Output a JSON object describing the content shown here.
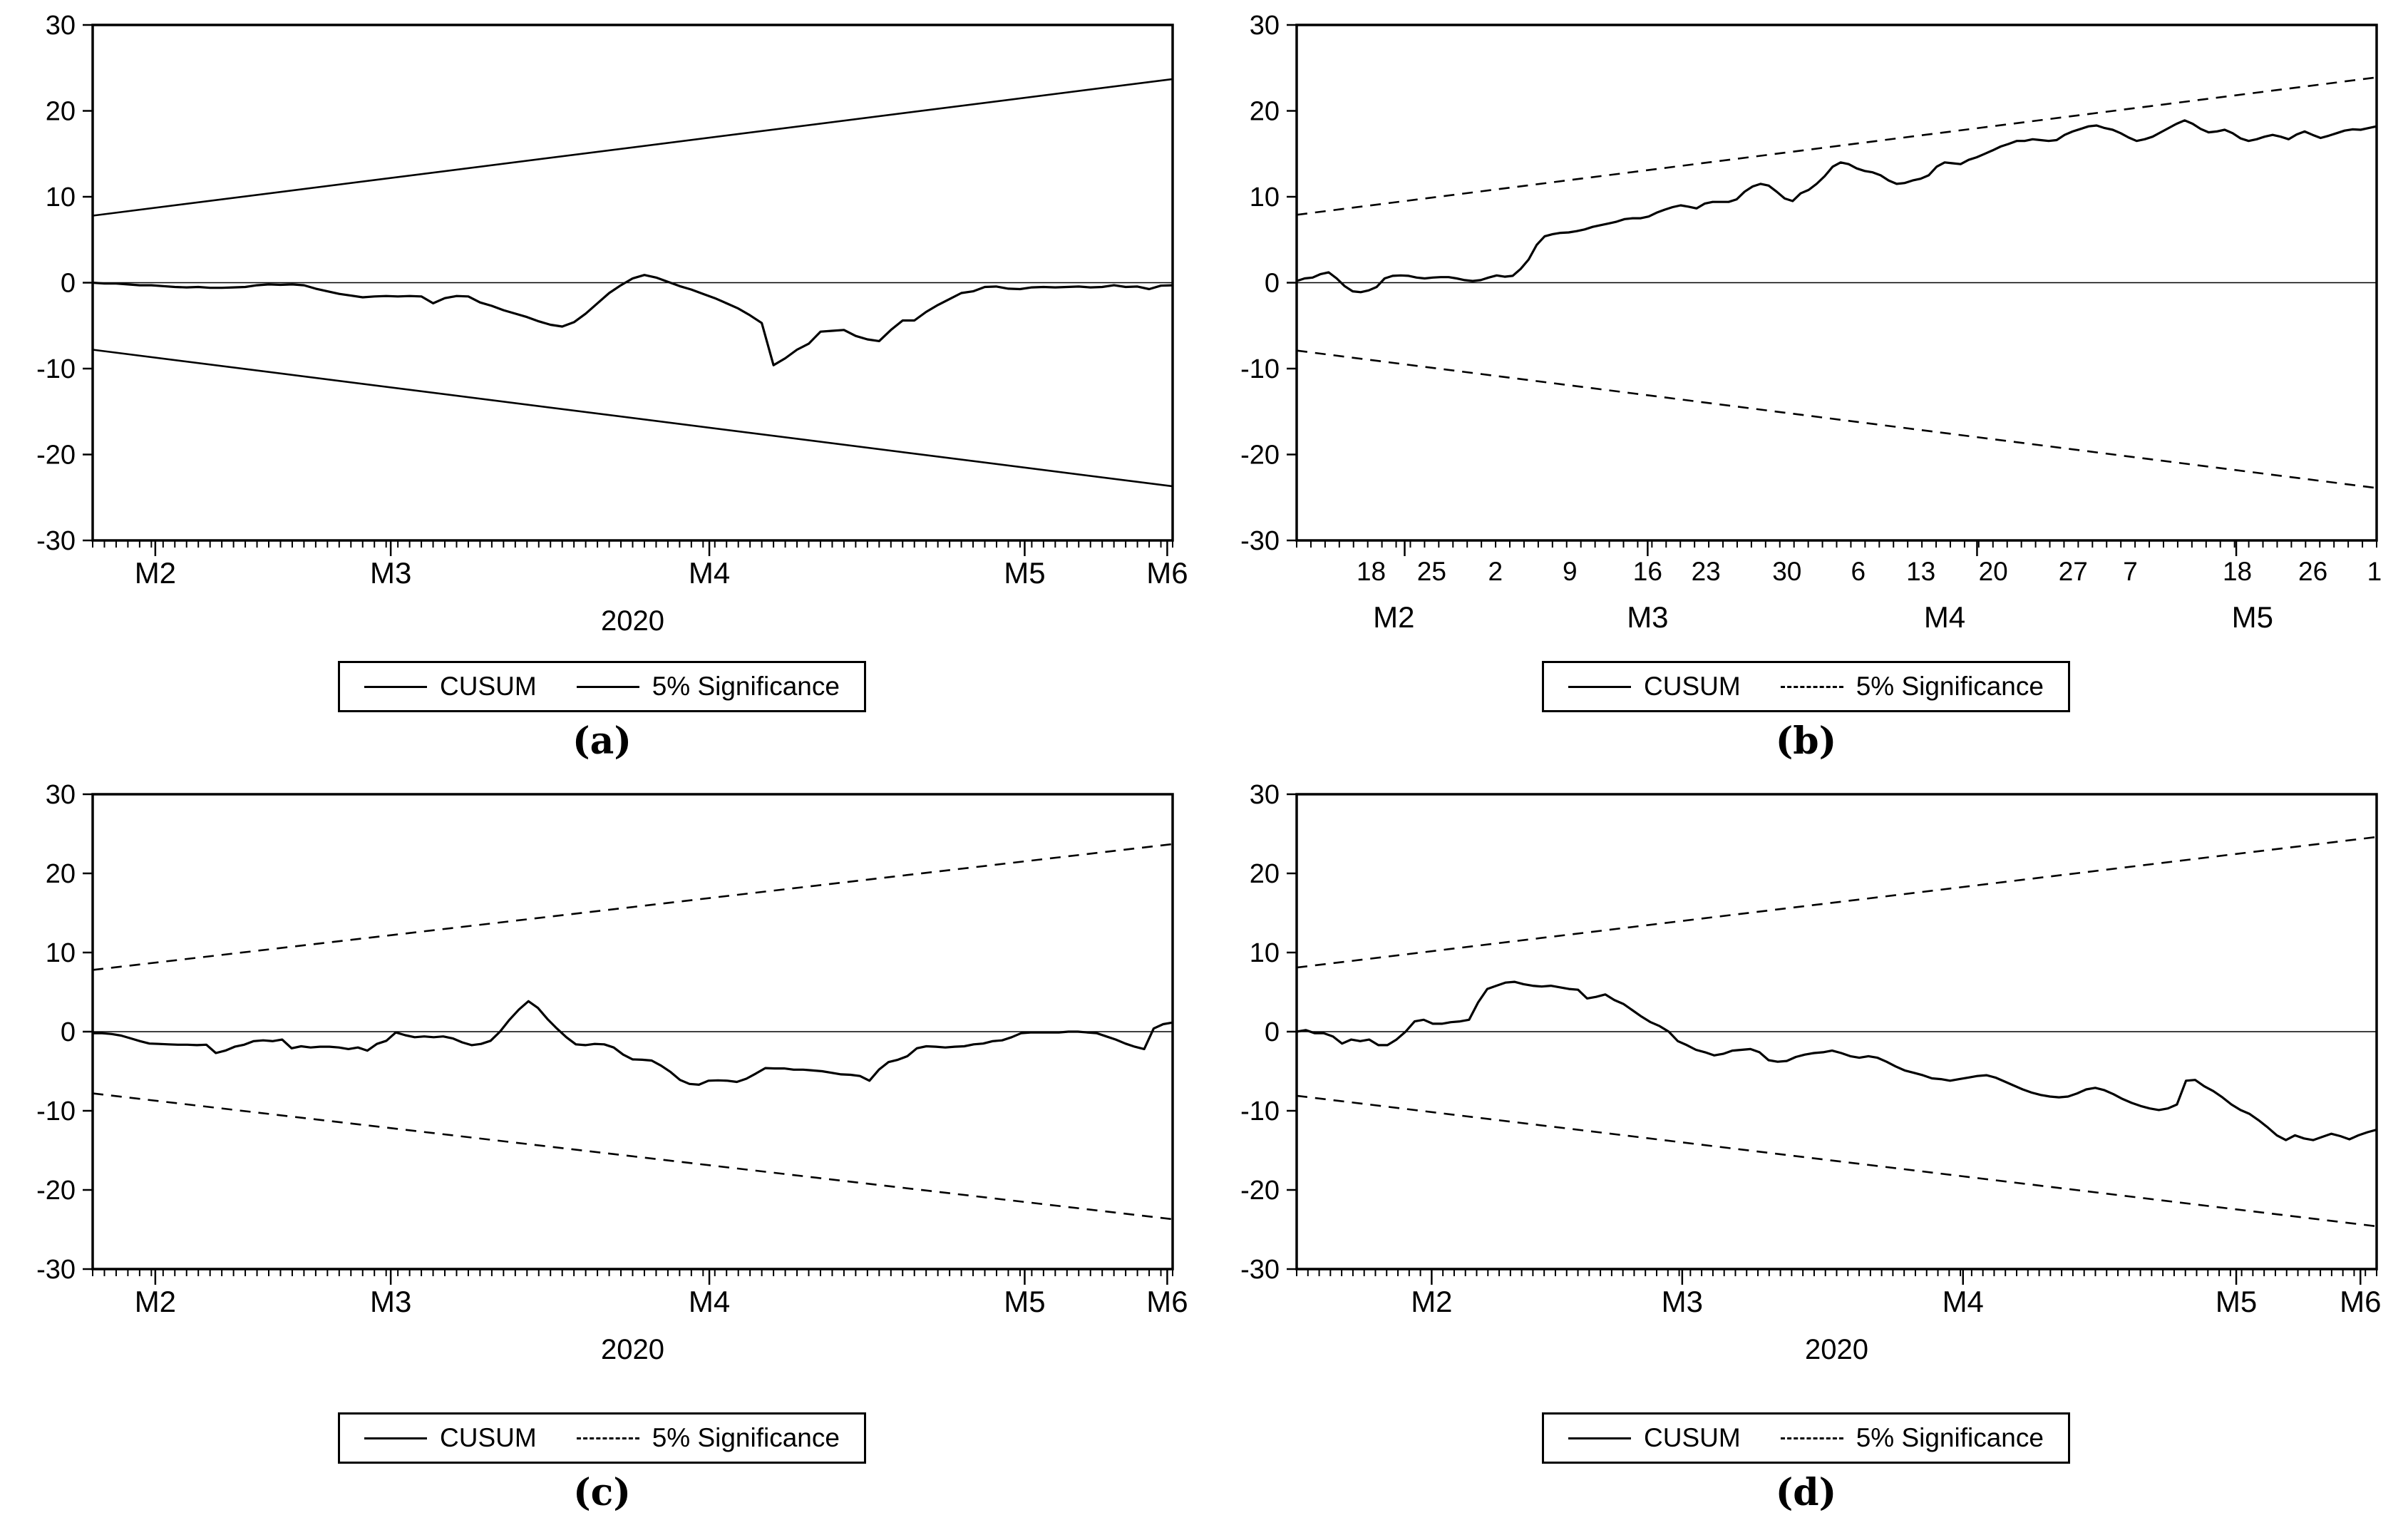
{
  "page": {
    "background": "#ffffff",
    "ink": "#000000"
  },
  "chart_data": [
    {
      "id": "a",
      "type": "line",
      "panel_label": "(a)",
      "legend": {
        "cusum": "CUSUM",
        "significance": "5% Significance"
      },
      "significance_style": "solid",
      "ylim": [
        -30,
        30
      ],
      "yticks": [
        30,
        20,
        10,
        0,
        -10,
        -20,
        -30
      ],
      "x_axis": {
        "style": "months",
        "minor_ticks": 92,
        "major_tick_pos": [
          0.058,
          0.276,
          0.571,
          0.863,
          0.995
        ],
        "months": [
          {
            "text": "M2",
            "pos": 0.058
          },
          {
            "text": "M3",
            "pos": 0.276
          },
          {
            "text": "M4",
            "pos": 0.571
          },
          {
            "text": "M5",
            "pos": 0.863
          },
          {
            "text": "M6",
            "pos": 0.995
          }
        ],
        "year": "2020"
      },
      "bounds": {
        "upper": [
          7.8,
          23.7
        ],
        "lower": [
          -7.8,
          -23.7
        ]
      },
      "cusum": [
        0,
        -0.1,
        -0.1,
        -0.2,
        -0.3,
        -0.3,
        -0.4,
        -0.5,
        -0.55,
        -0.5,
        -0.6,
        -0.6,
        -0.55,
        -0.5,
        -0.3,
        -0.2,
        -0.25,
        -0.2,
        -0.3,
        -0.7,
        -1.0,
        -1.3,
        -1.5,
        -1.7,
        -1.6,
        -1.55,
        -1.6,
        -1.55,
        -1.6,
        -2.4,
        -1.8,
        -1.55,
        -1.6,
        -2.3,
        -2.7,
        -3.2,
        -3.6,
        -4.0,
        -4.5,
        -4.9,
        -5.1,
        -4.6,
        -3.6,
        -2.4,
        -1.2,
        -0.3,
        0.5,
        0.9,
        0.6,
        0.1,
        -0.4,
        -0.8,
        -1.3,
        -1.8,
        -2.4,
        -3.0,
        -3.8,
        -4.7,
        -9.6,
        -8.8,
        -7.8,
        -7.1,
        -5.7,
        -5.6,
        -5.5,
        -6.2,
        -6.6,
        -6.8,
        -5.5,
        -4.4,
        -4.4,
        -3.4,
        -2.6,
        -1.9,
        -1.2,
        -1.0,
        -0.5,
        -0.45,
        -0.7,
        -0.75,
        -0.55,
        -0.5,
        -0.55,
        -0.5,
        -0.45,
        -0.55,
        -0.5,
        -0.3,
        -0.5,
        -0.45,
        -0.75,
        -0.35,
        -0.3
      ]
    },
    {
      "id": "b",
      "type": "line",
      "panel_label": "(b)",
      "legend": {
        "cusum": "CUSUM",
        "significance": "5% Significance"
      },
      "significance_style": "dashed",
      "ylim": [
        -30,
        30
      ],
      "yticks": [
        30,
        20,
        10,
        0,
        -10,
        -20,
        -30
      ],
      "x_axis": {
        "style": "dates",
        "minor_ticks": 76,
        "major_tick_pos": [
          0.1,
          0.325,
          0.63,
          0.87
        ],
        "dates": [
          {
            "text": "18",
            "pos": 0.069
          },
          {
            "text": "25",
            "pos": 0.125
          },
          {
            "text": "2",
            "pos": 0.184
          },
          {
            "text": "9",
            "pos": 0.253
          },
          {
            "text": "16",
            "pos": 0.325
          },
          {
            "text": "23",
            "pos": 0.379
          },
          {
            "text": "30",
            "pos": 0.454
          },
          {
            "text": "6",
            "pos": 0.52
          },
          {
            "text": "13",
            "pos": 0.578
          },
          {
            "text": "20",
            "pos": 0.645
          },
          {
            "text": "27",
            "pos": 0.719
          },
          {
            "text": "7",
            "pos": 0.772
          },
          {
            "text": "18",
            "pos": 0.871
          },
          {
            "text": "26",
            "pos": 0.941
          },
          {
            "text": "1",
            "pos": 0.998
          }
        ],
        "months": [
          {
            "text": "M2",
            "pos": 0.09
          },
          {
            "text": "M3",
            "pos": 0.325
          },
          {
            "text": "M4",
            "pos": 0.6
          },
          {
            "text": "M5",
            "pos": 0.885
          }
        ]
      },
      "bounds": {
        "upper": [
          7.9,
          23.9
        ],
        "lower": [
          -7.9,
          -23.9
        ]
      },
      "cusum": [
        0.2,
        0.5,
        0.6,
        1.0,
        1.2,
        0.5,
        -0.4,
        -1.0,
        -1.1,
        -0.9,
        -0.5,
        0.5,
        0.8,
        0.85,
        0.8,
        0.6,
        0.5,
        0.6,
        0.65,
        0.65,
        0.5,
        0.3,
        0.2,
        0.3,
        0.6,
        0.85,
        0.7,
        0.8,
        1.6,
        2.7,
        4.4,
        5.4,
        5.65,
        5.8,
        5.85,
        6.0,
        6.2,
        6.5,
        6.7,
        6.9,
        7.1,
        7.4,
        7.5,
        7.5,
        7.7,
        8.15,
        8.5,
        8.8,
        9.0,
        8.85,
        8.65,
        9.2,
        9.4,
        9.4,
        9.4,
        9.7,
        10.6,
        11.2,
        11.5,
        11.3,
        10.6,
        9.8,
        9.5,
        10.4,
        10.8,
        11.5,
        12.4,
        13.5,
        14.0,
        13.8,
        13.3,
        13.0,
        12.85,
        12.5,
        11.9,
        11.5,
        11.6,
        11.9,
        12.1,
        12.5,
        13.5,
        14.0,
        13.9,
        13.8,
        14.3,
        14.6,
        15.0,
        15.4,
        15.85,
        16.15,
        16.5,
        16.5,
        16.7,
        16.6,
        16.5,
        16.6,
        17.2,
        17.6,
        17.9,
        18.2,
        18.3,
        18.0,
        17.8,
        17.4,
        16.9,
        16.5,
        16.7,
        17.0,
        17.5,
        18.0,
        18.5,
        18.9,
        18.5,
        17.9,
        17.5,
        17.6,
        17.8,
        17.4,
        16.8,
        16.5,
        16.7,
        17.0,
        17.2,
        17.0,
        16.7,
        17.25,
        17.6,
        17.2,
        16.85,
        17.1,
        17.4,
        17.7,
        17.85,
        17.8,
        18.0,
        18.2
      ]
    },
    {
      "id": "c",
      "type": "line",
      "panel_label": "(c)",
      "legend": {
        "cusum": "CUSUM",
        "significance": "5% Significance"
      },
      "significance_style": "dashed",
      "ylim": [
        -30,
        30
      ],
      "yticks": [
        30,
        20,
        10,
        0,
        -10,
        -20,
        -30
      ],
      "x_axis": {
        "style": "months",
        "minor_ticks": 92,
        "major_tick_pos": [
          0.058,
          0.276,
          0.571,
          0.863,
          0.995
        ],
        "months": [
          {
            "text": "M2",
            "pos": 0.058
          },
          {
            "text": "M3",
            "pos": 0.276
          },
          {
            "text": "M4",
            "pos": 0.571
          },
          {
            "text": "M5",
            "pos": 0.863
          },
          {
            "text": "M6",
            "pos": 0.995
          }
        ],
        "year": "2020"
      },
      "bounds": {
        "upper": [
          7.8,
          23.7
        ],
        "lower": [
          -7.8,
          -23.7
        ]
      },
      "cusum": [
        -0.2,
        -0.2,
        -0.3,
        -0.5,
        -0.85,
        -1.2,
        -1.5,
        -1.55,
        -1.6,
        -1.65,
        -1.65,
        -1.7,
        -1.65,
        -2.7,
        -2.4,
        -1.9,
        -1.65,
        -1.2,
        -1.1,
        -1.2,
        -1.0,
        -2.1,
        -1.85,
        -2.0,
        -1.9,
        -1.9,
        -2.0,
        -2.2,
        -2.0,
        -2.4,
        -1.55,
        -1.15,
        -0.1,
        -0.45,
        -0.7,
        -0.6,
        -0.7,
        -0.6,
        -0.85,
        -1.35,
        -1.7,
        -1.55,
        -1.15,
        0.0,
        1.5,
        2.8,
        3.85,
        3.0,
        1.6,
        0.4,
        -0.7,
        -1.6,
        -1.7,
        -1.55,
        -1.6,
        -2.0,
        -2.9,
        -3.5,
        -3.55,
        -3.65,
        -4.3,
        -5.1,
        -6.1,
        -6.6,
        -6.7,
        -6.2,
        -6.15,
        -6.2,
        -6.35,
        -5.95,
        -5.3,
        -4.6,
        -4.65,
        -4.65,
        -4.8,
        -4.8,
        -4.9,
        -5.0,
        -5.2,
        -5.4,
        -5.45,
        -5.6,
        -6.2,
        -4.8,
        -3.85,
        -3.55,
        -3.1,
        -2.1,
        -1.85,
        -1.9,
        -2.0,
        -1.9,
        -1.85,
        -1.6,
        -1.5,
        -1.2,
        -1.1,
        -0.7,
        -0.2,
        -0.1,
        -0.1,
        -0.1,
        -0.1,
        0.0,
        0.0,
        -0.1,
        -0.2,
        -0.6,
        -1.0,
        -1.5,
        -1.9,
        -2.2,
        0.4,
        0.95,
        1.15
      ]
    },
    {
      "id": "d",
      "type": "line",
      "panel_label": "(d)",
      "legend": {
        "cusum": "CUSUM",
        "significance": "5% Significance"
      },
      "significance_style": "dashed",
      "ylim": [
        -30,
        30
      ],
      "yticks": [
        30,
        20,
        10,
        0,
        -10,
        -20,
        -30
      ],
      "x_axis": {
        "style": "months",
        "minor_ticks": 96,
        "major_tick_pos": [
          0.125,
          0.357,
          0.617,
          0.87,
          0.985
        ],
        "months": [
          {
            "text": "M2",
            "pos": 0.125
          },
          {
            "text": "M3",
            "pos": 0.357
          },
          {
            "text": "M4",
            "pos": 0.617
          },
          {
            "text": "M5",
            "pos": 0.87
          },
          {
            "text": "M6",
            "pos": 0.985
          }
        ],
        "year": "2020"
      },
      "bounds": {
        "upper": [
          8.1,
          24.6
        ],
        "lower": [
          -8.1,
          -24.6
        ]
      },
      "cusum": [
        0,
        0.2,
        -0.2,
        -0.2,
        -0.6,
        -1.5,
        -1.0,
        -1.2,
        -1.0,
        -1.7,
        -1.7,
        -1.0,
        0,
        1.3,
        1.5,
        1.0,
        1.0,
        1.2,
        1.3,
        1.5,
        3.7,
        5.4,
        5.8,
        6.2,
        6.3,
        6.0,
        5.8,
        5.7,
        5.8,
        5.6,
        5.4,
        5.3,
        4.2,
        4.4,
        4.7,
        4.0,
        3.5,
        2.7,
        1.9,
        1.2,
        0.7,
        0,
        -1.2,
        -1.7,
        -2.3,
        -2.6,
        -3.0,
        -2.8,
        -2.4,
        -2.3,
        -2.2,
        -2.6,
        -3.6,
        -3.8,
        -3.7,
        -3.2,
        -2.9,
        -2.7,
        -2.6,
        -2.4,
        -2.7,
        -3.1,
        -3.3,
        -3.1,
        -3.3,
        -3.8,
        -4.4,
        -4.9,
        -5.2,
        -5.5,
        -5.9,
        -6.0,
        -6.2,
        -6.0,
        -5.8,
        -5.6,
        -5.5,
        -5.8,
        -6.3,
        -6.8,
        -7.3,
        -7.7,
        -8.0,
        -8.2,
        -8.3,
        -8.2,
        -7.8,
        -7.3,
        -7.1,
        -7.4,
        -7.9,
        -8.5,
        -9.0,
        -9.4,
        -9.7,
        -9.9,
        -9.7,
        -9.2,
        -6.2,
        -6.1,
        -6.9,
        -7.5,
        -8.3,
        -9.2,
        -9.9,
        -10.4,
        -11.2,
        -12.1,
        -13.1,
        -13.7,
        -13.1,
        -13.5,
        -13.7,
        -13.3,
        -12.9,
        -13.2,
        -13.6,
        -13.1,
        -12.7,
        -12.4
      ]
    }
  ]
}
